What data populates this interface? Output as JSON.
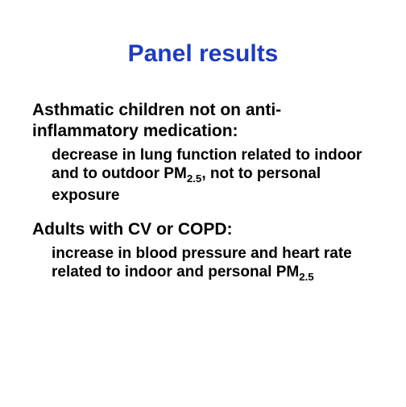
{
  "title": {
    "text": "Panel results",
    "color": "#1f3db7",
    "fontsize": 30
  },
  "sections": [
    {
      "heading": {
        "text": "Asthmatic children not on anti-inflammatory medication:",
        "color": "#000000",
        "fontsize": 21
      },
      "body": {
        "before": "decrease in lung function related to indoor and to outdoor PM",
        "sub": "2.5",
        "after": ", not to personal exposure",
        "color": "#000000",
        "fontsize": 19
      }
    },
    {
      "heading": {
        "text": "Adults with CV or COPD:",
        "color": "#000000",
        "fontsize": 21
      },
      "body": {
        "before": "increase in blood pressure and heart rate related to indoor and personal PM",
        "sub": "2.5",
        "after": "",
        "color": "#000000",
        "fontsize": 19
      }
    }
  ]
}
